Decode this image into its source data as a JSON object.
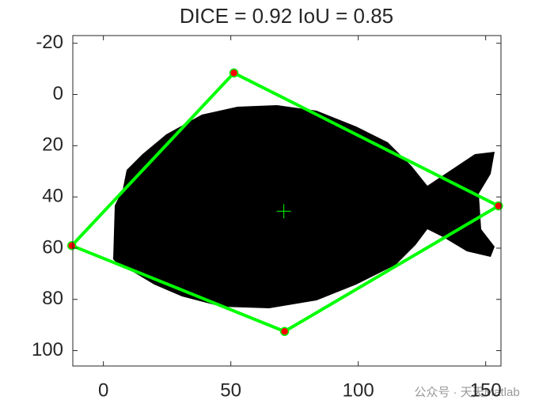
{
  "chart_data": {
    "type": "polygon",
    "title": "DICE = 0.92 IoU = 0.85",
    "x": [
      51.2,
      155,
      71.1,
      -12.4
    ],
    "y": [
      -8.4,
      43.5,
      92.5,
      59
    ],
    "color": "#00ff00",
    "marker_color": "#ff0000",
    "centroid": {
      "x": 70.8,
      "y": 45.6
    },
    "xlim": [
      -12,
      156
    ],
    "ylim": [
      -23,
      106
    ],
    "y_reversed": true,
    "xticks": [
      0,
      50,
      100,
      150
    ],
    "yticks": [
      -20,
      0,
      20,
      40,
      60,
      80,
      100
    ],
    "watermark": "公众号 · 天天Matlab"
  }
}
